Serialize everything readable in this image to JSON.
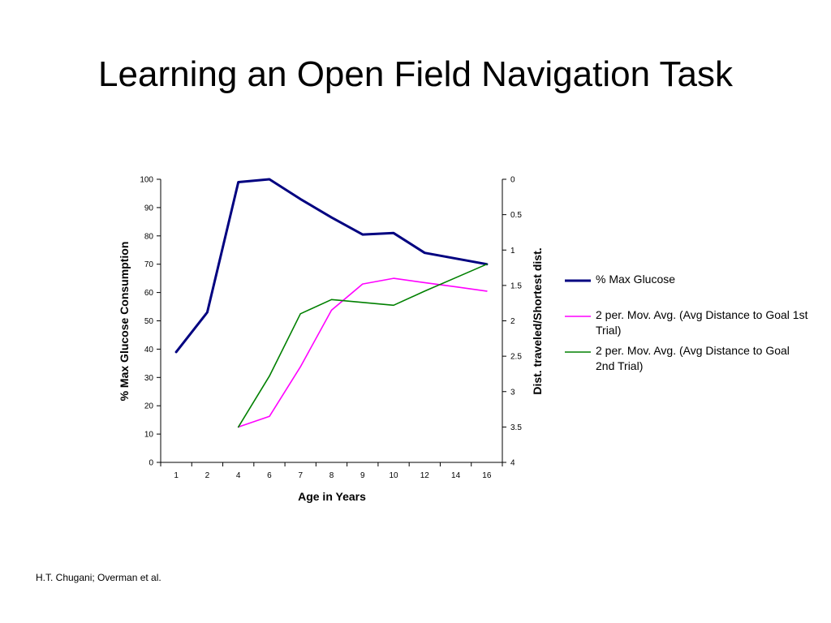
{
  "slide": {
    "title": "Learning an Open Field Navigation Task",
    "source": "H.T. Chugani; Overman et al."
  },
  "chart_data": {
    "type": "line",
    "title": "",
    "xlabel": "Age in Years",
    "ylabel_left": "% Max Glucose Consumption",
    "ylabel_right": "Dist. traveled/Shortest dist.",
    "categories": [
      "1",
      "2",
      "4",
      "6",
      "7",
      "8",
      "9",
      "10",
      "12",
      "14",
      "16"
    ],
    "y_left": {
      "min": 0,
      "max": 100,
      "ticks": [
        0,
        10,
        20,
        30,
        40,
        50,
        60,
        70,
        80,
        90,
        100
      ]
    },
    "y_right": {
      "min": 0,
      "max": 4,
      "reversed": true,
      "ticks": [
        "0",
        "0.5",
        "1",
        "1.5",
        "2",
        "2.5",
        "3",
        "3.5",
        "4"
      ]
    },
    "grid": false,
    "legend_position": "right",
    "series": [
      {
        "name": "% Max Glucose",
        "axis": "left",
        "color": "#000080",
        "values": [
          39,
          53,
          99,
          100,
          93,
          86.5,
          80.5,
          81,
          74,
          72,
          70
        ]
      },
      {
        "name": "2 per. Mov. Avg. (Avg Distance to Goal 1st Trial)",
        "axis": "right",
        "color": "#ff00ff",
        "values": [
          null,
          null,
          3.5,
          3.35,
          2.65,
          1.85,
          1.48,
          1.4,
          1.46,
          1.52,
          1.58
        ]
      },
      {
        "name": "2 per. Mov. Avg. (Avg Distance to Goal 2nd Trial)",
        "axis": "right",
        "color": "#008000",
        "values": [
          null,
          null,
          3.5,
          2.78,
          1.9,
          1.7,
          1.74,
          1.78,
          1.58,
          1.39,
          1.2
        ]
      }
    ]
  }
}
